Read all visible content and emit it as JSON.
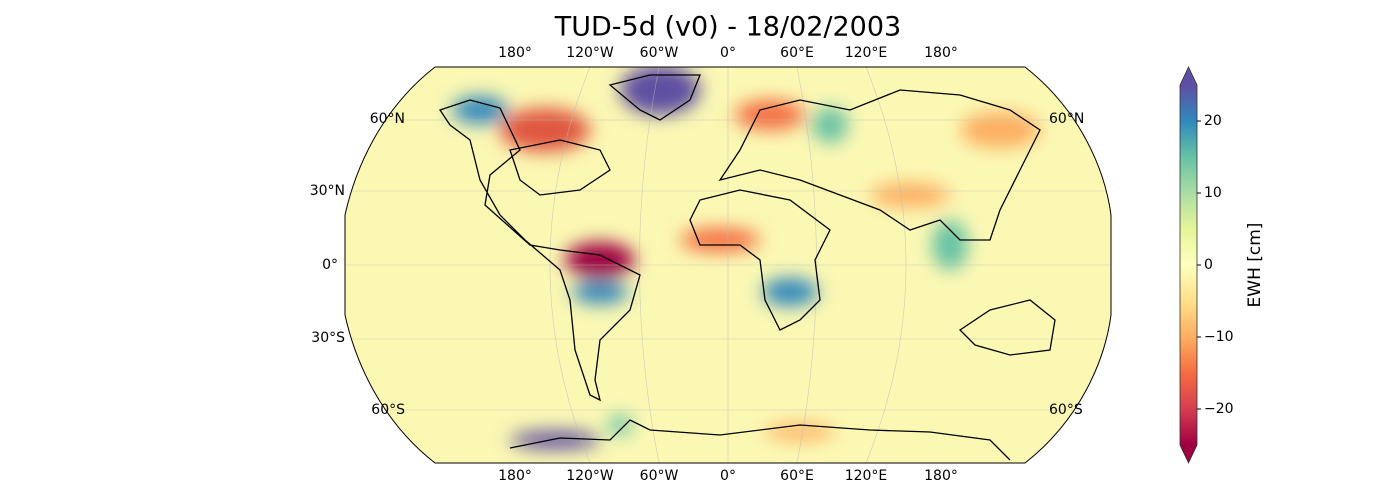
{
  "title": "TUD-5d (v0) - 18/02/2003",
  "grid": {
    "top_labels": [
      "180°",
      "120°W",
      "60°W",
      "0°",
      "60°E",
      "120°E",
      "180°"
    ],
    "bottom_labels": [
      "180°",
      "120°W",
      "60°W",
      "0°",
      "60°E",
      "120°E",
      "180°"
    ],
    "left_labels": [
      "60°N",
      "30°N",
      "0°",
      "30°S",
      "60°S"
    ],
    "right_labels": [
      "60°N",
      "60°S"
    ]
  },
  "colorbar": {
    "label": "EWH [cm]",
    "lim": [
      -25,
      25
    ],
    "ticks": [
      {
        "value": -20,
        "label": "−20"
      },
      {
        "value": -10,
        "label": "−10"
      },
      0,
      10,
      20
    ],
    "colors": [
      "#9e0142",
      "#d53e4f",
      "#f46d43",
      "#fdae61",
      "#fee08b",
      "#ffffbf",
      "#e6f598",
      "#abdda4",
      "#66c2a5",
      "#3288bd",
      "#5e4fa2"
    ]
  }
}
